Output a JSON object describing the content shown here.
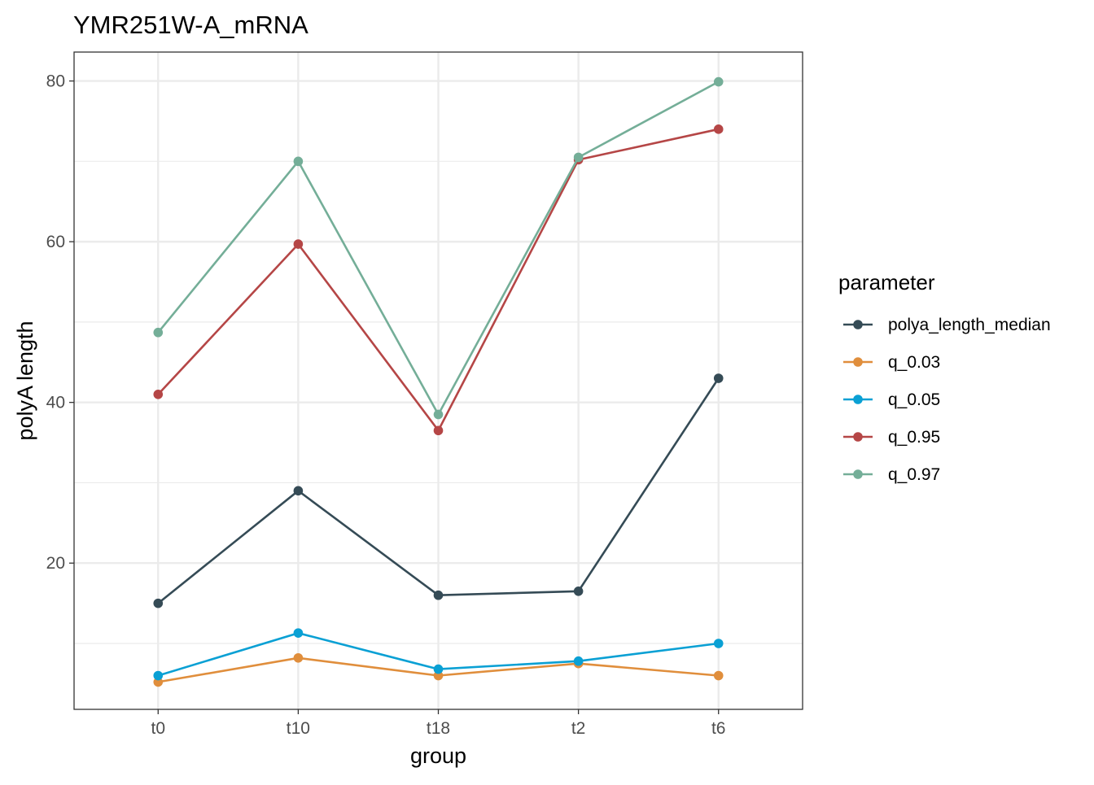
{
  "chart_data": {
    "type": "line",
    "title": "YMR251W-A_mRNA",
    "xlabel": "group",
    "ylabel": "polyA length",
    "categories": [
      "t0",
      "t10",
      "t18",
      "t2",
      "t6"
    ],
    "ylim": [
      1.8,
      83.6
    ],
    "yticks": [
      20,
      40,
      60,
      80
    ],
    "grid": true,
    "legend": {
      "title": "parameter",
      "position": "right"
    },
    "series": [
      {
        "name": "polya_length_median",
        "color": "#354b56",
        "values": [
          15.0,
          29.0,
          16.0,
          16.5,
          43.0
        ]
      },
      {
        "name": "q_0.03",
        "color": "#e08e3c",
        "values": [
          5.2,
          8.2,
          6.0,
          7.5,
          6.0
        ]
      },
      {
        "name": "q_0.05",
        "color": "#0aa0d4",
        "values": [
          6.0,
          11.3,
          6.8,
          7.8,
          10.0
        ]
      },
      {
        "name": "q_0.95",
        "color": "#b54646",
        "values": [
          41.0,
          59.7,
          36.5,
          70.2,
          74.0
        ]
      },
      {
        "name": "q_0.97",
        "color": "#74ae98",
        "values": [
          48.7,
          70.0,
          38.5,
          70.5,
          79.9
        ]
      }
    ]
  }
}
